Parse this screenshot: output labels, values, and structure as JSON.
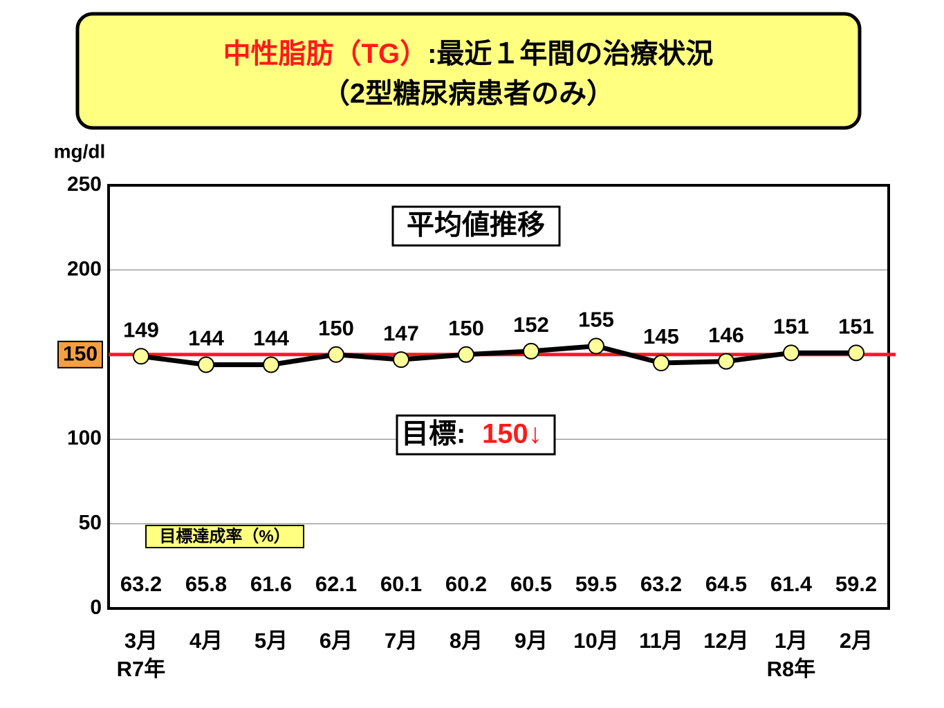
{
  "chart_data": {
    "type": "line",
    "title_red": "中性脂肪（TG）",
    "title_rest": ":最近１年間の治療状況",
    "subtitle": "（2型糖尿病患者のみ）",
    "y_unit": "mg/dl",
    "panel_label": "平均値推移",
    "categories": [
      "3月",
      "4月",
      "5月",
      "6月",
      "7月",
      "8月",
      "9月",
      "10月",
      "11月",
      "12月",
      "1月",
      "2月"
    ],
    "year_labels": [
      "R7年",
      null,
      null,
      null,
      null,
      null,
      null,
      null,
      null,
      null,
      "R8年",
      null
    ],
    "series": [
      {
        "name": "平均値",
        "color": "#000000",
        "marker_color": "#ffff99",
        "values": [
          149,
          144,
          144,
          150,
          147,
          150,
          152,
          155,
          145,
          146,
          151,
          151
        ]
      }
    ],
    "target": {
      "value": 150,
      "color": "#ff1a1a",
      "label_bg": "#f5a040",
      "text": "目標:",
      "value_label": "150↓"
    },
    "rate_title": "目標達成率（%）",
    "rates": [
      63.2,
      65.8,
      61.6,
      62.1,
      60.1,
      60.2,
      60.5,
      59.5,
      63.2,
      64.5,
      61.4,
      59.2
    ],
    "ylim": [
      0,
      250
    ],
    "yticks": [
      0,
      50,
      100,
      200,
      250
    ],
    "grid": true
  }
}
